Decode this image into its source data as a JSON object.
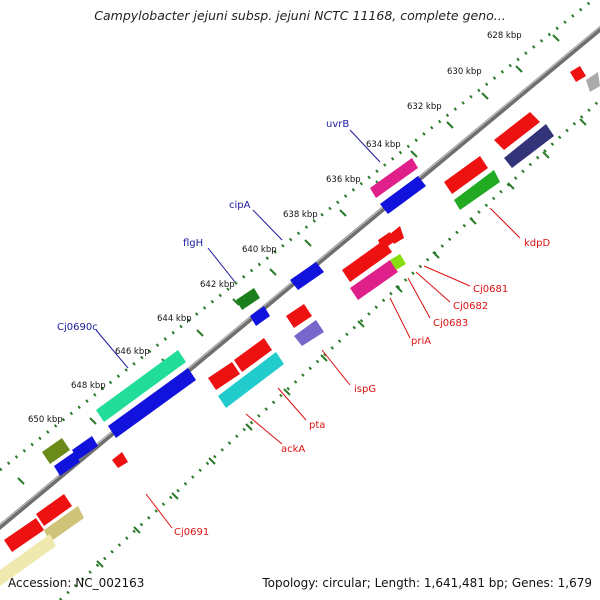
{
  "title": "Campylobacter jejuni subsp. jejuni NCTC 11168, complete geno...",
  "footer": {
    "accession": "Accession: NC_002163",
    "summary": "Topology: circular; Length: 1,641,481 bp; Genes: 1,679"
  },
  "ticks": [
    "628 kbp",
    "630 kbp",
    "632 kbp",
    "634 kbp",
    "636 kbp",
    "638 kbp",
    "640 kbp",
    "642 kbp",
    "644 kbp",
    "646 kbp",
    "648 kbp",
    "650 kbp"
  ],
  "outer_genes": [
    {
      "name": "uvrB",
      "color": "#1a1aa0"
    },
    {
      "name": "cipA",
      "color": "#1a1aa0"
    },
    {
      "name": "flgH",
      "color": "#1a1aa0"
    },
    {
      "name": "Cj0690c",
      "color": "#1a1aa0"
    }
  ],
  "inner_genes": [
    {
      "name": "kdpD",
      "color": "#dd1111"
    },
    {
      "name": "Cj0681",
      "color": "#dd1111"
    },
    {
      "name": "Cj0682",
      "color": "#dd1111"
    },
    {
      "name": "Cj0683",
      "color": "#dd1111"
    },
    {
      "name": "priA",
      "color": "#dd1111"
    },
    {
      "name": "ispG",
      "color": "#dd1111"
    },
    {
      "name": "pta",
      "color": "#dd1111"
    },
    {
      "name": "ackA",
      "color": "#dd1111"
    },
    {
      "name": "Cj0691",
      "color": "#dd1111"
    }
  ],
  "colors": {
    "forward_label": "#1a1aa0",
    "reverse_label": "#dd1111",
    "tick_dots": "#2a7a2a",
    "backbone": "#8a8a8a"
  }
}
